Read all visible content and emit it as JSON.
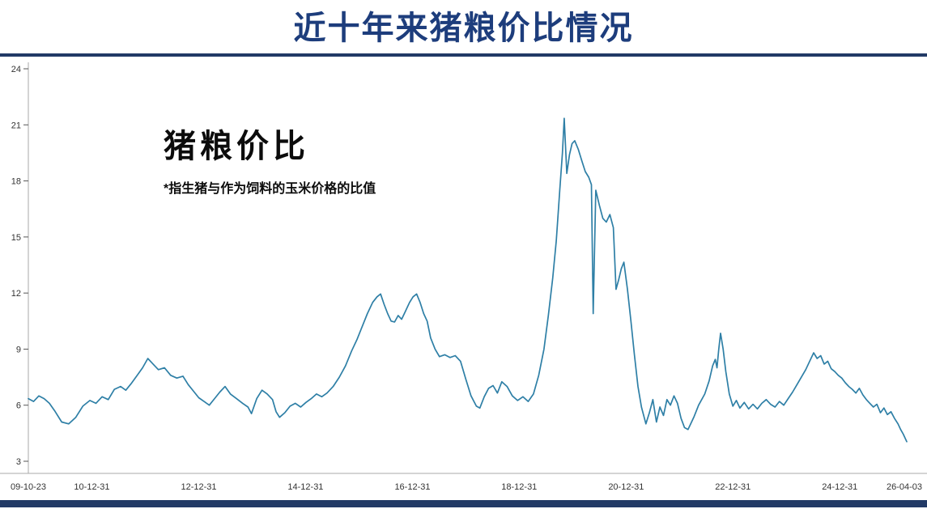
{
  "header": {
    "title": "近十年来猪粮价比情况"
  },
  "theme": {
    "title_color": "#1d3d7c",
    "rule_color": "#223a66",
    "background": "#ffffff"
  },
  "chart_data": {
    "type": "line",
    "title": "近十年来猪粮价比情况",
    "annotation": {
      "title": "猪粮价比",
      "subtitle": "*指生猪与作为饲料的玉米价格的比值"
    },
    "line_color": "#2e7fa6",
    "axis_color": "#aaaaaa",
    "tick_color": "#555555",
    "label_color": "#333333",
    "grid": false,
    "legend": "none",
    "xlabel": "",
    "ylabel": "",
    "ylim": [
      3,
      24
    ],
    "y_ticks": [
      3,
      6,
      9,
      12,
      15,
      18,
      21,
      24
    ],
    "x_ticks": [
      {
        "label": "09-10-23",
        "pos": 0.0
      },
      {
        "label": "10-12-31",
        "pos": 0.0723
      },
      {
        "label": "12-12-31",
        "pos": 0.194
      },
      {
        "label": "14-12-31",
        "pos": 0.3156
      },
      {
        "label": "16-12-31",
        "pos": 0.4373
      },
      {
        "label": "18-12-31",
        "pos": 0.5588
      },
      {
        "label": "20-12-31",
        "pos": 0.6805
      },
      {
        "label": "22-12-31",
        "pos": 0.8021
      },
      {
        "label": "24-12-31",
        "pos": 0.9237
      },
      {
        "label": "26-04-03",
        "pos": 1.0
      }
    ],
    "series": [
      {
        "name": "猪粮价比",
        "x_format": "fraction-of-axis",
        "points": [
          [
            0.0,
            6.35
          ],
          [
            0.006,
            6.2
          ],
          [
            0.012,
            6.5
          ],
          [
            0.018,
            6.35
          ],
          [
            0.024,
            6.1
          ],
          [
            0.03,
            5.7
          ],
          [
            0.038,
            5.1
          ],
          [
            0.046,
            5.0
          ],
          [
            0.054,
            5.35
          ],
          [
            0.062,
            5.95
          ],
          [
            0.07,
            6.25
          ],
          [
            0.077,
            6.1
          ],
          [
            0.084,
            6.45
          ],
          [
            0.091,
            6.3
          ],
          [
            0.098,
            6.85
          ],
          [
            0.105,
            7.0
          ],
          [
            0.111,
            6.8
          ],
          [
            0.117,
            7.15
          ],
          [
            0.124,
            7.6
          ],
          [
            0.13,
            8.0
          ],
          [
            0.136,
            8.5
          ],
          [
            0.142,
            8.2
          ],
          [
            0.148,
            7.9
          ],
          [
            0.155,
            8.0
          ],
          [
            0.162,
            7.6
          ],
          [
            0.169,
            7.45
          ],
          [
            0.176,
            7.55
          ],
          [
            0.182,
            7.1
          ],
          [
            0.188,
            6.75
          ],
          [
            0.194,
            6.4
          ],
          [
            0.2,
            6.2
          ],
          [
            0.206,
            6.0
          ],
          [
            0.212,
            6.35
          ],
          [
            0.218,
            6.7
          ],
          [
            0.224,
            7.0
          ],
          [
            0.23,
            6.6
          ],
          [
            0.237,
            6.35
          ],
          [
            0.244,
            6.1
          ],
          [
            0.25,
            5.9
          ],
          [
            0.254,
            5.55
          ],
          [
            0.26,
            6.35
          ],
          [
            0.266,
            6.8
          ],
          [
            0.272,
            6.6
          ],
          [
            0.278,
            6.3
          ],
          [
            0.282,
            5.65
          ],
          [
            0.286,
            5.35
          ],
          [
            0.292,
            5.6
          ],
          [
            0.298,
            5.95
          ],
          [
            0.304,
            6.1
          ],
          [
            0.31,
            5.9
          ],
          [
            0.316,
            6.15
          ],
          [
            0.322,
            6.35
          ],
          [
            0.328,
            6.6
          ],
          [
            0.334,
            6.45
          ],
          [
            0.34,
            6.65
          ],
          [
            0.347,
            7.0
          ],
          [
            0.354,
            7.5
          ],
          [
            0.361,
            8.1
          ],
          [
            0.368,
            8.9
          ],
          [
            0.374,
            9.5
          ],
          [
            0.38,
            10.2
          ],
          [
            0.386,
            10.9
          ],
          [
            0.392,
            11.5
          ],
          [
            0.397,
            11.8
          ],
          [
            0.401,
            11.95
          ],
          [
            0.405,
            11.4
          ],
          [
            0.409,
            10.9
          ],
          [
            0.413,
            10.5
          ],
          [
            0.417,
            10.45
          ],
          [
            0.421,
            10.8
          ],
          [
            0.425,
            10.6
          ],
          [
            0.429,
            11.0
          ],
          [
            0.434,
            11.5
          ],
          [
            0.438,
            11.8
          ],
          [
            0.442,
            11.95
          ],
          [
            0.446,
            11.5
          ],
          [
            0.45,
            10.9
          ],
          [
            0.454,
            10.5
          ],
          [
            0.458,
            9.6
          ],
          [
            0.463,
            9.0
          ],
          [
            0.468,
            8.6
          ],
          [
            0.474,
            8.7
          ],
          [
            0.48,
            8.55
          ],
          [
            0.486,
            8.65
          ],
          [
            0.492,
            8.35
          ],
          [
            0.498,
            7.4
          ],
          [
            0.504,
            6.5
          ],
          [
            0.51,
            5.95
          ],
          [
            0.514,
            5.85
          ],
          [
            0.519,
            6.45
          ],
          [
            0.524,
            6.9
          ],
          [
            0.529,
            7.05
          ],
          [
            0.534,
            6.65
          ],
          [
            0.539,
            7.25
          ],
          [
            0.545,
            7.0
          ],
          [
            0.551,
            6.5
          ],
          [
            0.557,
            6.25
          ],
          [
            0.563,
            6.45
          ],
          [
            0.569,
            6.2
          ],
          [
            0.575,
            6.6
          ],
          [
            0.581,
            7.6
          ],
          [
            0.587,
            9.0
          ],
          [
            0.592,
            10.8
          ],
          [
            0.597,
            12.8
          ],
          [
            0.601,
            14.8
          ],
          [
            0.605,
            17.5
          ],
          [
            0.608,
            19.5
          ],
          [
            0.61,
            21.35
          ],
          [
            0.613,
            18.4
          ],
          [
            0.616,
            19.4
          ],
          [
            0.619,
            20.0
          ],
          [
            0.622,
            20.15
          ],
          [
            0.626,
            19.7
          ],
          [
            0.63,
            19.1
          ],
          [
            0.634,
            18.5
          ],
          [
            0.638,
            18.2
          ],
          [
            0.641,
            17.8
          ],
          [
            0.643,
            10.9
          ],
          [
            0.646,
            17.5
          ],
          [
            0.65,
            16.7
          ],
          [
            0.654,
            16.0
          ],
          [
            0.658,
            15.8
          ],
          [
            0.662,
            16.2
          ],
          [
            0.666,
            15.5
          ],
          [
            0.669,
            12.2
          ],
          [
            0.672,
            12.7
          ],
          [
            0.675,
            13.3
          ],
          [
            0.678,
            13.65
          ],
          [
            0.682,
            12.2
          ],
          [
            0.686,
            10.5
          ],
          [
            0.69,
            8.7
          ],
          [
            0.694,
            7.0
          ],
          [
            0.698,
            5.9
          ],
          [
            0.703,
            5.0
          ],
          [
            0.707,
            5.6
          ],
          [
            0.711,
            6.3
          ],
          [
            0.715,
            5.1
          ],
          [
            0.719,
            5.9
          ],
          [
            0.723,
            5.45
          ],
          [
            0.727,
            6.3
          ],
          [
            0.731,
            6.0
          ],
          [
            0.735,
            6.5
          ],
          [
            0.739,
            6.1
          ],
          [
            0.743,
            5.3
          ],
          [
            0.747,
            4.8
          ],
          [
            0.751,
            4.7
          ],
          [
            0.755,
            5.1
          ],
          [
            0.758,
            5.4
          ],
          [
            0.763,
            6.0
          ],
          [
            0.77,
            6.6
          ],
          [
            0.775,
            7.3
          ],
          [
            0.779,
            8.1
          ],
          [
            0.782,
            8.45
          ],
          [
            0.784,
            8.0
          ],
          [
            0.786,
            9.0
          ],
          [
            0.788,
            9.85
          ],
          [
            0.791,
            9.0
          ],
          [
            0.794,
            7.8
          ],
          [
            0.798,
            6.6
          ],
          [
            0.802,
            5.95
          ],
          [
            0.806,
            6.25
          ],
          [
            0.81,
            5.85
          ],
          [
            0.815,
            6.15
          ],
          [
            0.82,
            5.8
          ],
          [
            0.825,
            6.05
          ],
          [
            0.83,
            5.8
          ],
          [
            0.835,
            6.1
          ],
          [
            0.84,
            6.3
          ],
          [
            0.845,
            6.05
          ],
          [
            0.85,
            5.9
          ],
          [
            0.855,
            6.2
          ],
          [
            0.86,
            6.0
          ],
          [
            0.865,
            6.35
          ],
          [
            0.87,
            6.7
          ],
          [
            0.875,
            7.1
          ],
          [
            0.88,
            7.5
          ],
          [
            0.885,
            7.9
          ],
          [
            0.89,
            8.4
          ],
          [
            0.894,
            8.8
          ],
          [
            0.898,
            8.5
          ],
          [
            0.902,
            8.65
          ],
          [
            0.906,
            8.2
          ],
          [
            0.91,
            8.35
          ],
          [
            0.914,
            7.95
          ],
          [
            0.918,
            7.8
          ],
          [
            0.922,
            7.6
          ],
          [
            0.926,
            7.45
          ],
          [
            0.93,
            7.2
          ],
          [
            0.934,
            7.0
          ],
          [
            0.938,
            6.85
          ],
          [
            0.942,
            6.65
          ],
          [
            0.946,
            6.9
          ],
          [
            0.95,
            6.55
          ],
          [
            0.954,
            6.3
          ],
          [
            0.958,
            6.1
          ],
          [
            0.962,
            5.9
          ],
          [
            0.966,
            6.05
          ],
          [
            0.97,
            5.6
          ],
          [
            0.974,
            5.85
          ],
          [
            0.978,
            5.5
          ],
          [
            0.982,
            5.65
          ],
          [
            0.986,
            5.3
          ],
          [
            0.99,
            5.0
          ],
          [
            0.993,
            4.7
          ],
          [
            0.996,
            4.45
          ],
          [
            1.0,
            4.05
          ]
        ]
      }
    ]
  }
}
